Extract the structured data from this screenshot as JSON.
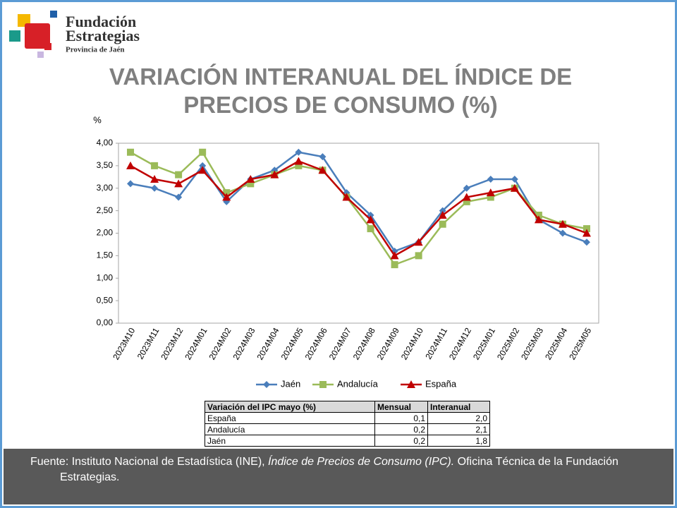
{
  "logo": {
    "line1": "Fundación",
    "line2": "Estrategias",
    "line3": "Provincia de Jaén"
  },
  "chart_data": {
    "type": "line",
    "title": "VARIACIÓN INTERANUAL DEL ÍNDICE DE PRECIOS DE CONSUMO (%)",
    "y_label": "%",
    "categories": [
      "2023M10",
      "2023M11",
      "2023M12",
      "2024M01",
      "2024M02",
      "2024M03",
      "2024M04",
      "2024M05",
      "2024M06",
      "2024M07",
      "2024M08",
      "2024M09",
      "2024M10",
      "2024M11",
      "2024M12",
      "2025M01",
      "2025M02",
      "2025M03",
      "2025M04",
      "2025M05"
    ],
    "series": [
      {
        "name": "Jaén",
        "color": "#4a7ebb",
        "marker": "diamond",
        "values": [
          3.1,
          3.0,
          2.8,
          3.5,
          2.7,
          3.2,
          3.4,
          3.8,
          3.7,
          2.9,
          2.4,
          1.6,
          1.8,
          2.5,
          3.0,
          3.2,
          3.2,
          2.3,
          2.0,
          1.8
        ]
      },
      {
        "name": "Andalucía",
        "color": "#9bbb59",
        "marker": "square",
        "values": [
          3.8,
          3.5,
          3.3,
          3.8,
          2.9,
          3.1,
          3.3,
          3.5,
          3.4,
          2.8,
          2.1,
          1.3,
          1.5,
          2.2,
          2.7,
          2.8,
          3.0,
          2.4,
          2.2,
          2.1
        ]
      },
      {
        "name": "España",
        "color": "#c00000",
        "marker": "triangle",
        "values": [
          3.5,
          3.2,
          3.1,
          3.4,
          2.8,
          3.2,
          3.3,
          3.6,
          3.4,
          2.8,
          2.3,
          1.5,
          1.8,
          2.4,
          2.8,
          2.9,
          3.0,
          2.3,
          2.2,
          2.0
        ]
      }
    ],
    "ylim": [
      0,
      4
    ],
    "yticks": [
      {
        "value": 0,
        "label": "0,00"
      },
      {
        "value": 0.5,
        "label": "0,50"
      },
      {
        "value": 1,
        "label": "1,00"
      },
      {
        "value": 1.5,
        "label": "1,50"
      },
      {
        "value": 2,
        "label": "2,00"
      },
      {
        "value": 2.5,
        "label": "2,50"
      },
      {
        "value": 3,
        "label": "3,00"
      },
      {
        "value": 3.5,
        "label": "3,50"
      },
      {
        "value": 4,
        "label": "4,00"
      }
    ],
    "grid": false,
    "legend": "bottom"
  },
  "table": {
    "header": [
      "Variación del IPC mayo (%)",
      "Mensual",
      "Interanual"
    ],
    "rows": [
      [
        "España",
        "0,1",
        "2,0"
      ],
      [
        "Andalucía",
        "0,2",
        "2,1"
      ],
      [
        "Jaén",
        "0,2",
        "1,8"
      ]
    ]
  },
  "footer": {
    "text1": "Fuente: Instituto Nacional de Estadística (INE), ",
    "italic": "Índice de Precios de Consumo (IPC).",
    "text2": " Oficina Técnica de la Fundación Estrategias."
  }
}
